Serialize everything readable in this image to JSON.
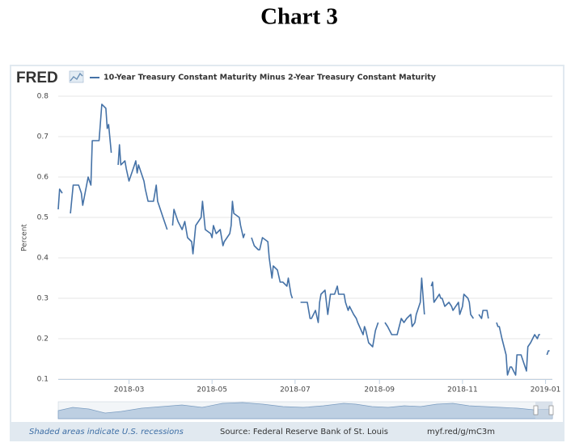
{
  "chart_data": {
    "type": "line",
    "page_title": "Chart 3",
    "logo": "FRED",
    "title": "10-Year Treasury Constant Maturity Minus 2-Year Treasury Constant Maturity",
    "y_label": "Percent",
    "footer_left": "Shaded areas indicate U.S. recessions",
    "footer_source": "Source: Federal Reserve Bank of St. Louis",
    "footer_link": "myf.red/g/mC3m",
    "xlim": [
      "2018-01-08",
      "2019-01-06"
    ],
    "xticks": [
      "2018-03",
      "2018-05",
      "2018-07",
      "2018-09",
      "2018-11",
      "2019-01"
    ],
    "ylim": [
      0.1,
      0.8
    ],
    "yticks": [
      0.1,
      0.2,
      0.3,
      0.4,
      0.5,
      0.6,
      0.7,
      0.8
    ],
    "grid": true,
    "x": [
      "2018-01-08",
      "2018-01-09",
      "2018-01-11",
      "2018-01-12",
      "2018-01-17",
      "2018-01-19",
      "2018-01-23",
      "2018-01-25",
      "2018-01-26",
      "2018-01-30",
      "2018-02-01",
      "2018-02-02",
      "2018-02-07",
      "2018-02-09",
      "2018-02-12",
      "2018-02-13",
      "2018-02-14",
      "2018-02-16",
      "2018-02-19",
      "2018-02-21",
      "2018-02-22",
      "2018-02-23",
      "2018-02-26",
      "2018-02-27",
      "2018-03-01",
      "2018-03-05",
      "2018-03-06",
      "2018-03-07",
      "2018-03-08",
      "2018-03-12",
      "2018-03-13",
      "2018-03-15",
      "2018-03-16",
      "2018-03-19",
      "2018-03-21",
      "2018-03-22",
      "2018-03-23",
      "2018-03-26",
      "2018-03-29",
      "2018-03-30",
      "2018-04-02",
      "2018-04-03",
      "2018-04-05",
      "2018-04-06",
      "2018-04-09",
      "2018-04-11",
      "2018-04-13",
      "2018-04-16",
      "2018-04-17",
      "2018-04-19",
      "2018-04-23",
      "2018-04-24",
      "2018-04-26",
      "2018-04-30",
      "2018-05-01",
      "2018-05-02",
      "2018-05-04",
      "2018-05-07",
      "2018-05-09",
      "2018-05-10",
      "2018-05-14",
      "2018-05-15",
      "2018-05-16",
      "2018-05-17",
      "2018-05-21",
      "2018-05-22",
      "2018-05-24",
      "2018-05-25",
      "2018-05-28",
      "2018-05-30",
      "2018-06-01",
      "2018-06-04",
      "2018-06-05",
      "2018-06-07",
      "2018-06-11",
      "2018-06-12",
      "2018-06-14",
      "2018-06-15",
      "2018-06-18",
      "2018-06-20",
      "2018-06-22",
      "2018-06-25",
      "2018-06-26",
      "2018-06-28",
      "2018-06-29",
      "2018-07-02",
      "2018-07-05",
      "2018-07-10",
      "2018-07-12",
      "2018-07-13",
      "2018-07-16",
      "2018-07-18",
      "2018-07-19",
      "2018-07-20",
      "2018-07-23",
      "2018-07-25",
      "2018-07-27",
      "2018-07-30",
      "2018-08-01",
      "2018-08-02",
      "2018-08-06",
      "2018-08-07",
      "2018-08-09",
      "2018-08-10",
      "2018-08-13",
      "2018-08-15",
      "2018-08-16",
      "2018-08-20",
      "2018-08-21",
      "2018-08-22",
      "2018-08-24",
      "2018-08-27",
      "2018-08-29",
      "2018-08-31",
      "2018-09-03",
      "2018-09-05",
      "2018-09-07",
      "2018-09-10",
      "2018-09-12",
      "2018-09-14",
      "2018-09-17",
      "2018-09-19",
      "2018-09-21",
      "2018-09-24",
      "2018-09-25",
      "2018-09-27",
      "2018-09-28",
      "2018-10-01",
      "2018-10-02",
      "2018-10-04",
      "2018-10-08",
      "2018-10-09",
      "2018-10-10",
      "2018-10-11",
      "2018-10-15",
      "2018-10-16",
      "2018-10-17",
      "2018-10-19",
      "2018-10-22",
      "2018-10-24",
      "2018-10-25",
      "2018-10-29",
      "2018-10-30",
      "2018-11-01",
      "2018-11-02",
      "2018-11-05",
      "2018-11-06",
      "2018-11-07",
      "2018-11-09",
      "2018-11-12",
      "2018-11-13",
      "2018-11-15",
      "2018-11-16",
      "2018-11-19",
      "2018-11-20",
      "2018-11-22",
      "2018-11-26",
      "2018-11-27",
      "2018-11-28",
      "2018-11-30",
      "2018-12-03",
      "2018-12-04",
      "2018-12-06",
      "2018-12-07",
      "2018-12-10",
      "2018-12-11",
      "2018-12-13",
      "2018-12-14",
      "2018-12-18",
      "2018-12-19",
      "2018-12-21",
      "2018-12-24",
      "2018-12-26",
      "2018-12-27",
      "2018-12-28",
      "2018-12-31",
      "2019-01-02",
      "2019-01-03",
      "2019-01-04"
    ],
    "series": [
      {
        "name": "10-Year Treasury Constant Maturity Minus 2-Year Treasury Constant Maturity",
        "color": "#4572a7",
        "values": [
          0.52,
          0.57,
          0.56,
          null,
          0.51,
          0.58,
          0.58,
          0.56,
          0.53,
          0.6,
          0.58,
          0.69,
          0.69,
          0.78,
          0.77,
          0.72,
          0.73,
          0.66,
          null,
          0.63,
          0.68,
          0.63,
          0.64,
          0.62,
          0.59,
          0.63,
          0.64,
          0.61,
          0.63,
          0.59,
          0.57,
          0.54,
          0.54,
          0.54,
          0.58,
          0.54,
          0.53,
          0.5,
          0.47,
          null,
          0.48,
          0.52,
          0.5,
          0.49,
          0.47,
          0.49,
          0.45,
          0.44,
          0.41,
          0.48,
          0.5,
          0.54,
          0.47,
          0.46,
          0.45,
          0.48,
          0.46,
          0.47,
          0.43,
          0.44,
          0.46,
          0.48,
          0.54,
          0.51,
          0.5,
          0.48,
          0.45,
          0.46,
          null,
          0.45,
          0.43,
          0.42,
          0.42,
          0.45,
          0.44,
          0.4,
          0.35,
          0.38,
          0.37,
          0.34,
          0.34,
          0.33,
          0.35,
          0.31,
          0.3,
          null,
          0.29,
          0.29,
          0.25,
          0.25,
          0.27,
          0.24,
          0.29,
          0.31,
          0.32,
          0.26,
          0.31,
          0.31,
          0.33,
          0.31,
          0.31,
          0.29,
          0.27,
          0.28,
          0.26,
          0.25,
          0.24,
          0.21,
          0.23,
          0.22,
          0.19,
          0.18,
          0.22,
          0.24,
          null,
          0.24,
          0.23,
          0.21,
          0.21,
          0.21,
          0.25,
          0.24,
          0.25,
          0.26,
          0.23,
          0.24,
          0.26,
          0.29,
          0.35,
          0.26,
          null,
          0.33,
          0.34,
          0.29,
          0.31,
          0.3,
          0.3,
          0.28,
          0.29,
          0.28,
          0.27,
          0.29,
          0.26,
          0.28,
          0.31,
          0.3,
          0.29,
          0.26,
          0.25,
          null,
          0.26,
          0.25,
          0.27,
          0.27,
          0.25,
          null,
          0.24,
          0.23,
          0.23,
          0.2,
          0.16,
          0.11,
          0.13,
          0.13,
          0.11,
          0.16,
          0.16,
          0.16,
          0.12,
          0.18,
          0.19,
          0.21,
          0.2,
          0.21,
          0.21,
          null,
          0.16,
          0.17,
          0.17
        ]
      }
    ]
  }
}
